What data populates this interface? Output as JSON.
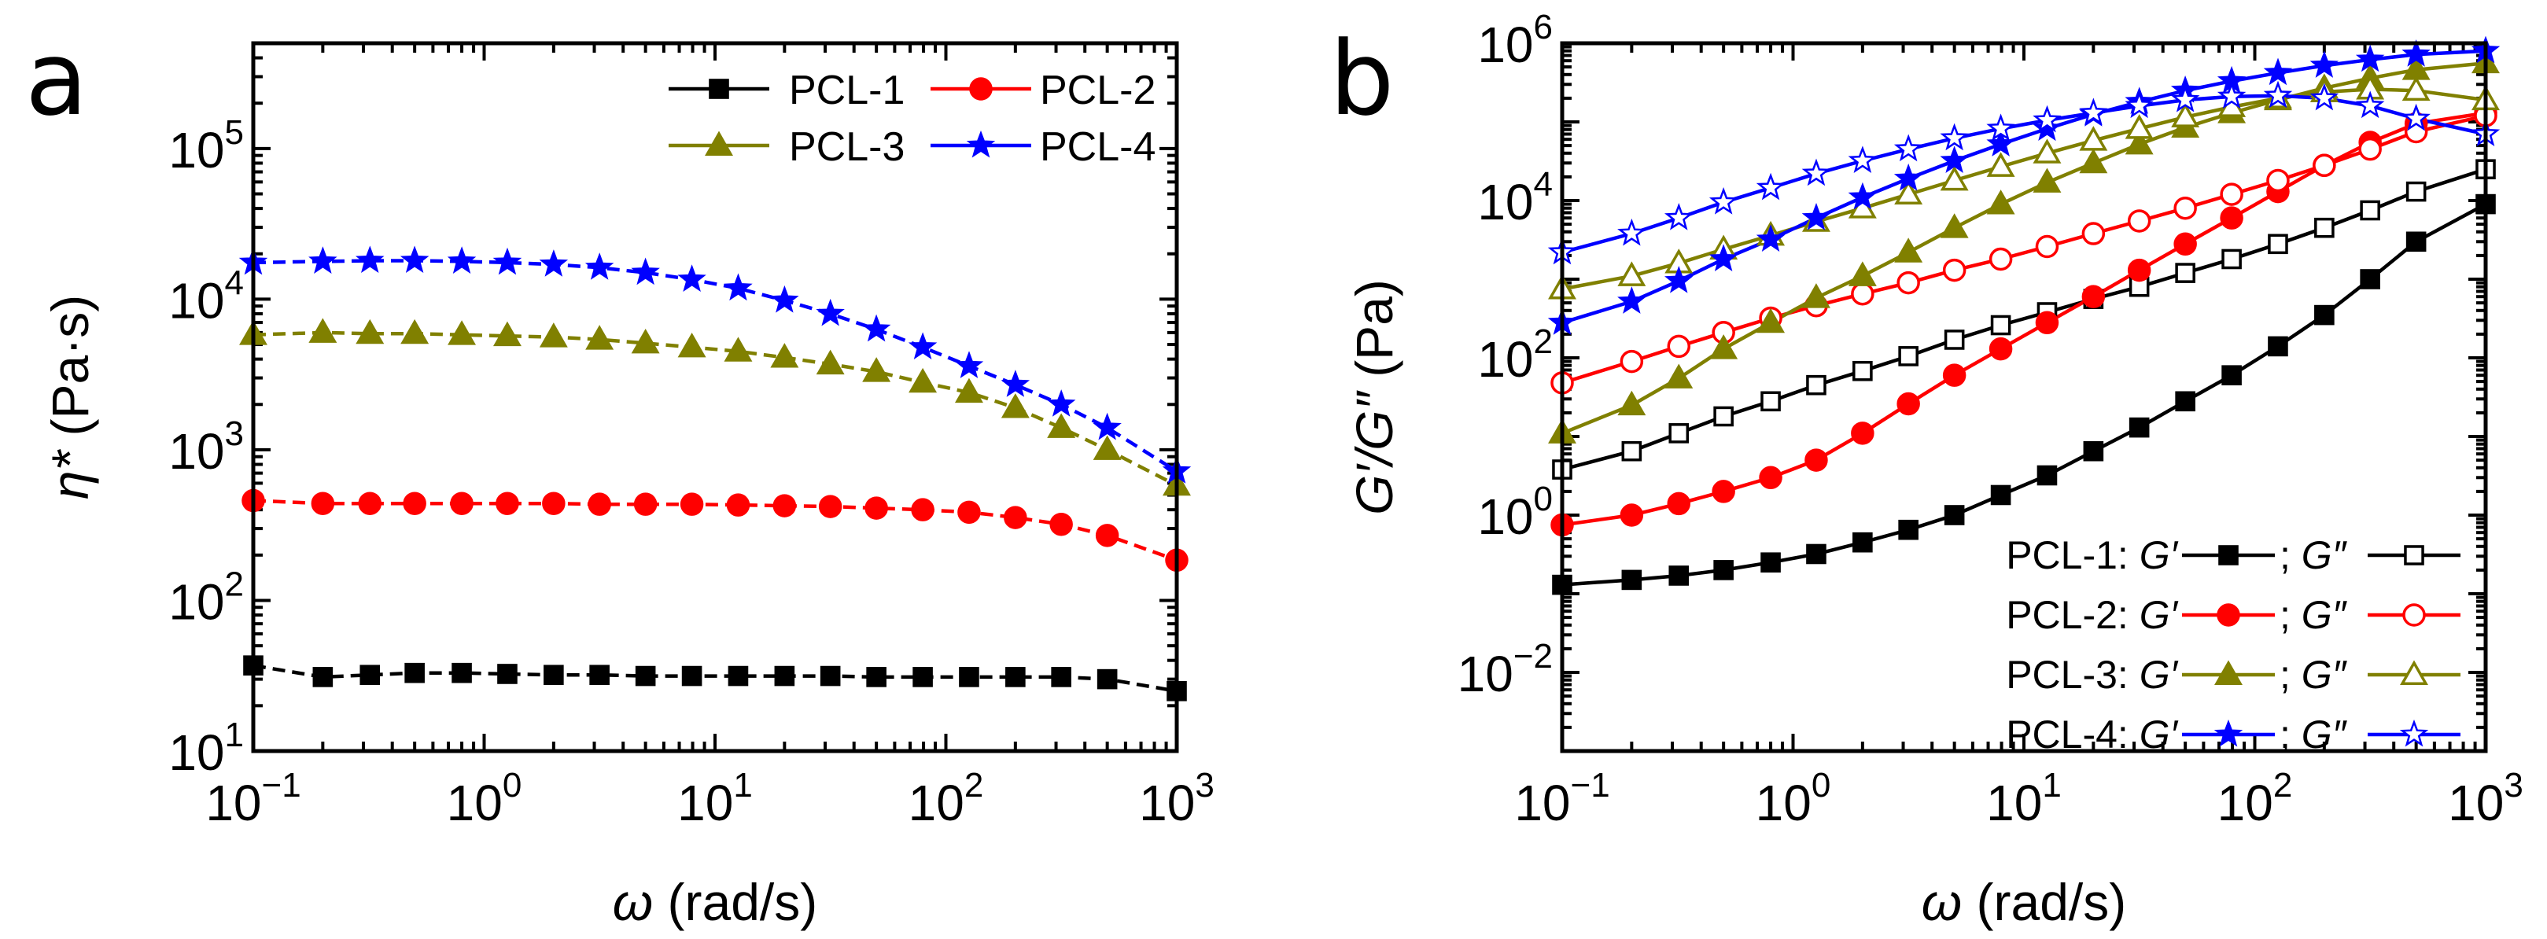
{
  "chart_data": [
    {
      "panel": "a",
      "type": "line",
      "xscale": "log",
      "yscale": "log",
      "xlabel": {
        "sym": "ω",
        "text": " (rad/s)"
      },
      "ylabel": {
        "sym": "η*",
        "text": " (Pa·s)"
      },
      "xlim": [
        0.1,
        1000
      ],
      "ylim": [
        10,
        500000
      ],
      "xtick_exps": [
        -1,
        0,
        1,
        2,
        3
      ],
      "ytick_exps": [
        1,
        2,
        3,
        4,
        5
      ],
      "legend_position": "top-right",
      "x": [
        0.1,
        0.2,
        0.32,
        0.5,
        0.8,
        1.26,
        2,
        3.16,
        5,
        7.94,
        12.6,
        20,
        31.6,
        50,
        79.4,
        126,
        200,
        316,
        500,
        1000
      ],
      "series": [
        {
          "name": "PCL-1",
          "color": "#000000",
          "marker": "square",
          "values": [
            37,
            31,
            32,
            33,
            33,
            32.5,
            32,
            32,
            31.5,
            31.5,
            31.5,
            31.5,
            31.5,
            31,
            31,
            31,
            31,
            31,
            30,
            25
          ]
        },
        {
          "name": "PCL-2",
          "color": "#ff0000",
          "marker": "circle",
          "values": [
            460,
            440,
            440,
            440,
            440,
            440,
            440,
            435,
            435,
            435,
            430,
            425,
            420,
            410,
            400,
            385,
            355,
            320,
            270,
            185
          ]
        },
        {
          "name": "PCL-3",
          "color": "#808000",
          "marker": "triangle",
          "values": [
            5800,
            6000,
            5900,
            5900,
            5800,
            5700,
            5600,
            5400,
            5100,
            4800,
            4500,
            4100,
            3700,
            3300,
            2800,
            2400,
            1900,
            1400,
            1000,
            580
          ]
        },
        {
          "name": "PCL-4",
          "color": "#0000ff",
          "marker": "star",
          "values": [
            17500,
            17800,
            18000,
            18000,
            17800,
            17500,
            17000,
            16200,
            15000,
            13500,
            11800,
            9800,
            8000,
            6300,
            4800,
            3600,
            2700,
            2000,
            1400,
            720
          ]
        }
      ]
    },
    {
      "panel": "b",
      "type": "line",
      "xscale": "log",
      "yscale": "log",
      "xlabel": {
        "sym": "ω",
        "text": " (rad/s)"
      },
      "ylabel": {
        "sym": "G′/G″",
        "text": " (Pa)"
      },
      "xlim": [
        0.1,
        1000
      ],
      "ylim": [
        0.001,
        1000000
      ],
      "xtick_exps": [
        -1,
        0,
        1,
        2,
        3
      ],
      "ytick_exps": [
        -2,
        0,
        2,
        4,
        6
      ],
      "legend_position": "bottom-right",
      "legend_rows": [
        {
          "prefix": "PCL-1: ",
          "g1": "G′",
          "sep": "; ",
          "g2": "G″",
          "color": "#000000",
          "marker": "square"
        },
        {
          "prefix": "PCL-2: ",
          "g1": "G′",
          "sep": "; ",
          "g2": "G″",
          "color": "#ff0000",
          "marker": "circle"
        },
        {
          "prefix": "PCL-3: ",
          "g1": "G′",
          "sep": "; ",
          "g2": "G″",
          "color": "#808000",
          "marker": "triangle"
        },
        {
          "prefix": "PCL-4: ",
          "g1": "G′",
          "sep": "; ",
          "g2": "G″",
          "color": "#0000ff",
          "marker": "star"
        }
      ],
      "x": [
        0.1,
        0.2,
        0.32,
        0.5,
        0.8,
        1.26,
        2,
        3.16,
        5,
        7.94,
        12.6,
        20,
        31.6,
        50,
        79.4,
        126,
        200,
        316,
        500,
        1000
      ],
      "series": [
        {
          "name": "PCL-1 G′",
          "color": "#000000",
          "marker": "square",
          "filled": true,
          "values": [
            0.13,
            0.15,
            0.17,
            0.2,
            0.25,
            0.32,
            0.45,
            0.65,
            1.0,
            1.8,
            3.2,
            6.5,
            13,
            28,
            60,
            140,
            350,
            1000,
            3000,
            9000
          ]
        },
        {
          "name": "PCL-1 G″",
          "color": "#000000",
          "marker": "square",
          "filled": false,
          "values": [
            3.8,
            6.5,
            11,
            18,
            28,
            45,
            68,
            105,
            170,
            260,
            380,
            560,
            800,
            1200,
            1800,
            2800,
            4500,
            7500,
            13000,
            25000
          ]
        },
        {
          "name": "PCL-2 G′",
          "color": "#ff0000",
          "marker": "circle",
          "filled": true,
          "values": [
            0.75,
            1.0,
            1.4,
            2.0,
            3.0,
            5.0,
            11,
            26,
            60,
            130,
            280,
            600,
            1300,
            2800,
            6000,
            13000,
            28000,
            55000,
            95000,
            130000
          ]
        },
        {
          "name": "PCL-2 G″",
          "color": "#ff0000",
          "marker": "circle",
          "filled": false,
          "values": [
            48,
            90,
            140,
            210,
            320,
            460,
            650,
            900,
            1300,
            1800,
            2600,
            3800,
            5500,
            8000,
            12000,
            18000,
            28000,
            45000,
            75000,
            120000
          ]
        },
        {
          "name": "PCL-3 G′",
          "color": "#808000",
          "marker": "triangle",
          "filled": true,
          "values": [
            11,
            25,
            55,
            130,
            280,
            580,
            1100,
            2200,
            4500,
            9000,
            17000,
            30000,
            52000,
            85000,
            130000,
            190000,
            270000,
            360000,
            460000,
            560000
          ]
        },
        {
          "name": "PCL-3 G″",
          "color": "#808000",
          "marker": "triangle",
          "filled": false,
          "values": [
            750,
            1100,
            1600,
            2400,
            3600,
            5400,
            8000,
            12000,
            18000,
            27000,
            40000,
            58000,
            82000,
            115000,
            155000,
            200000,
            240000,
            260000,
            250000,
            190000
          ]
        },
        {
          "name": "PCL-4 G′",
          "color": "#0000ff",
          "marker": "star",
          "filled": true,
          "values": [
            280,
            520,
            950,
            1800,
            3200,
            6000,
            11000,
            19000,
            32000,
            52000,
            82000,
            125000,
            180000,
            250000,
            330000,
            420000,
            520000,
            620000,
            720000,
            800000
          ]
        },
        {
          "name": "PCL-4 G″",
          "color": "#0000ff",
          "marker": "star",
          "filled": false,
          "values": [
            2200,
            3800,
            6000,
            9500,
            14500,
            22000,
            32000,
            45000,
            62000,
            82000,
            105000,
            130000,
            160000,
            190000,
            210000,
            215000,
            200000,
            160000,
            110000,
            70000
          ]
        }
      ]
    }
  ]
}
